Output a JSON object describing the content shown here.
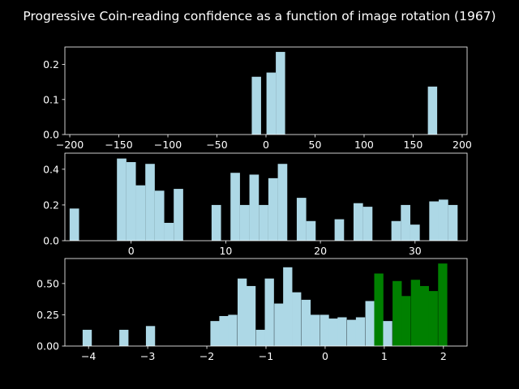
{
  "chart_data": {
    "type": "bar",
    "title": "Progressive Coin-reading confidence as a function of image rotation (1967)",
    "colors": {
      "background": "#000000",
      "bar": "#add8e6",
      "highlight": "#008000",
      "axis": "#ffffff"
    },
    "panels": [
      {
        "xlim": [
          -205,
          205
        ],
        "ylim": [
          0,
          0.25
        ],
        "xticks": [
          -200,
          -150,
          -100,
          -50,
          0,
          50,
          100,
          150,
          200
        ],
        "xtick_labels": [
          "−200",
          "−150",
          "−100",
          "−50",
          "0",
          "50",
          "100",
          "150",
          "200"
        ],
        "yticks": [
          0,
          0.1,
          0.2
        ],
        "ytick_labels": [
          "0.0",
          "0.1",
          "0.2"
        ],
        "bin_width": 9.5,
        "bars": [
          {
            "x0": -14.5,
            "value": 0.165
          },
          {
            "x0": 0.5,
            "value": 0.177
          },
          {
            "x0": 10,
            "value": 0.236
          },
          {
            "x0": 165,
            "value": 0.137
          }
        ]
      },
      {
        "xlim": [
          -7,
          35.5
        ],
        "ylim": [
          0,
          0.49
        ],
        "xticks": [
          0,
          10,
          20,
          30
        ],
        "xtick_labels": [
          "0",
          "10",
          "20",
          "30"
        ],
        "yticks": [
          0,
          0.2,
          0.4
        ],
        "ytick_labels": [
          "0.0",
          "0.2",
          "0.4"
        ],
        "bin_width": 1,
        "bars": [
          {
            "x0": -6.5,
            "value": 0.18
          },
          {
            "x0": -1.5,
            "value": 0.46
          },
          {
            "x0": -0.5,
            "value": 0.44
          },
          {
            "x0": 0.5,
            "value": 0.31
          },
          {
            "x0": 1.5,
            "value": 0.43
          },
          {
            "x0": 2.5,
            "value": 0.28
          },
          {
            "x0": 3.5,
            "value": 0.1
          },
          {
            "x0": 4.5,
            "value": 0.29
          },
          {
            "x0": 8.5,
            "value": 0.2
          },
          {
            "x0": 10.5,
            "value": 0.38
          },
          {
            "x0": 11.5,
            "value": 0.2
          },
          {
            "x0": 12.5,
            "value": 0.37
          },
          {
            "x0": 13.5,
            "value": 0.2
          },
          {
            "x0": 14.5,
            "value": 0.35
          },
          {
            "x0": 15.5,
            "value": 0.43
          },
          {
            "x0": 17.5,
            "value": 0.24
          },
          {
            "x0": 18.5,
            "value": 0.11
          },
          {
            "x0": 21.5,
            "value": 0.12
          },
          {
            "x0": 23.5,
            "value": 0.21
          },
          {
            "x0": 24.5,
            "value": 0.19
          },
          {
            "x0": 27.5,
            "value": 0.11
          },
          {
            "x0": 28.5,
            "value": 0.2
          },
          {
            "x0": 29.5,
            "value": 0.09
          },
          {
            "x0": 31.5,
            "value": 0.22
          },
          {
            "x0": 32.5,
            "value": 0.23
          },
          {
            "x0": 33.5,
            "value": 0.2
          }
        ]
      },
      {
        "xlim": [
          -4.4,
          2.4
        ],
        "ylim": [
          0,
          0.7
        ],
        "xticks": [
          -4,
          -3,
          -2,
          -1,
          0,
          1,
          2
        ],
        "xtick_labels": [
          "−4",
          "−3",
          "−2",
          "−1",
          "0",
          "1",
          "2"
        ],
        "yticks": [
          0,
          0.25,
          0.5
        ],
        "ytick_labels": [
          "0.00",
          "0.25",
          "0.50"
        ],
        "bin_width": 0.155,
        "bars": [
          {
            "x0": -4.1,
            "value": 0.13,
            "color": "#add8e6"
          },
          {
            "x0": -3.48,
            "value": 0.13,
            "color": "#add8e6"
          },
          {
            "x0": -3.03,
            "value": 0.16,
            "color": "#add8e6"
          },
          {
            "x0": -1.94,
            "value": 0.2,
            "color": "#add8e6"
          },
          {
            "x0": -1.79,
            "value": 0.24,
            "color": "#add8e6"
          },
          {
            "x0": -1.64,
            "value": 0.25,
            "color": "#add8e6"
          },
          {
            "x0": -1.48,
            "value": 0.54,
            "color": "#add8e6"
          },
          {
            "x0": -1.33,
            "value": 0.48,
            "color": "#add8e6"
          },
          {
            "x0": -1.17,
            "value": 0.13,
            "color": "#add8e6"
          },
          {
            "x0": -1.02,
            "value": 0.54,
            "color": "#add8e6"
          },
          {
            "x0": -0.86,
            "value": 0.34,
            "color": "#add8e6"
          },
          {
            "x0": -0.71,
            "value": 0.63,
            "color": "#add8e6"
          },
          {
            "x0": -0.56,
            "value": 0.43,
            "color": "#add8e6"
          },
          {
            "x0": -0.4,
            "value": 0.37,
            "color": "#add8e6"
          },
          {
            "x0": -0.25,
            "value": 0.25,
            "color": "#add8e6"
          },
          {
            "x0": -0.09,
            "value": 0.25,
            "color": "#add8e6"
          },
          {
            "x0": 0.06,
            "value": 0.22,
            "color": "#add8e6"
          },
          {
            "x0": 0.21,
            "value": 0.23,
            "color": "#add8e6"
          },
          {
            "x0": 0.37,
            "value": 0.21,
            "color": "#add8e6"
          },
          {
            "x0": 0.52,
            "value": 0.23,
            "color": "#add8e6"
          },
          {
            "x0": 0.68,
            "value": 0.36,
            "color": "#add8e6"
          },
          {
            "x0": 0.83,
            "value": 0.58,
            "color": "#008000"
          },
          {
            "x0": 0.98,
            "value": 0.2,
            "color": "#add8e6"
          },
          {
            "x0": 1.14,
            "value": 0.52,
            "color": "#008000"
          },
          {
            "x0": 1.29,
            "value": 0.4,
            "color": "#008000"
          },
          {
            "x0": 1.45,
            "value": 0.53,
            "color": "#008000"
          },
          {
            "x0": 1.6,
            "value": 0.48,
            "color": "#008000"
          },
          {
            "x0": 1.75,
            "value": 0.44,
            "color": "#008000"
          },
          {
            "x0": 1.91,
            "value": 0.66,
            "color": "#008000"
          }
        ]
      }
    ]
  }
}
